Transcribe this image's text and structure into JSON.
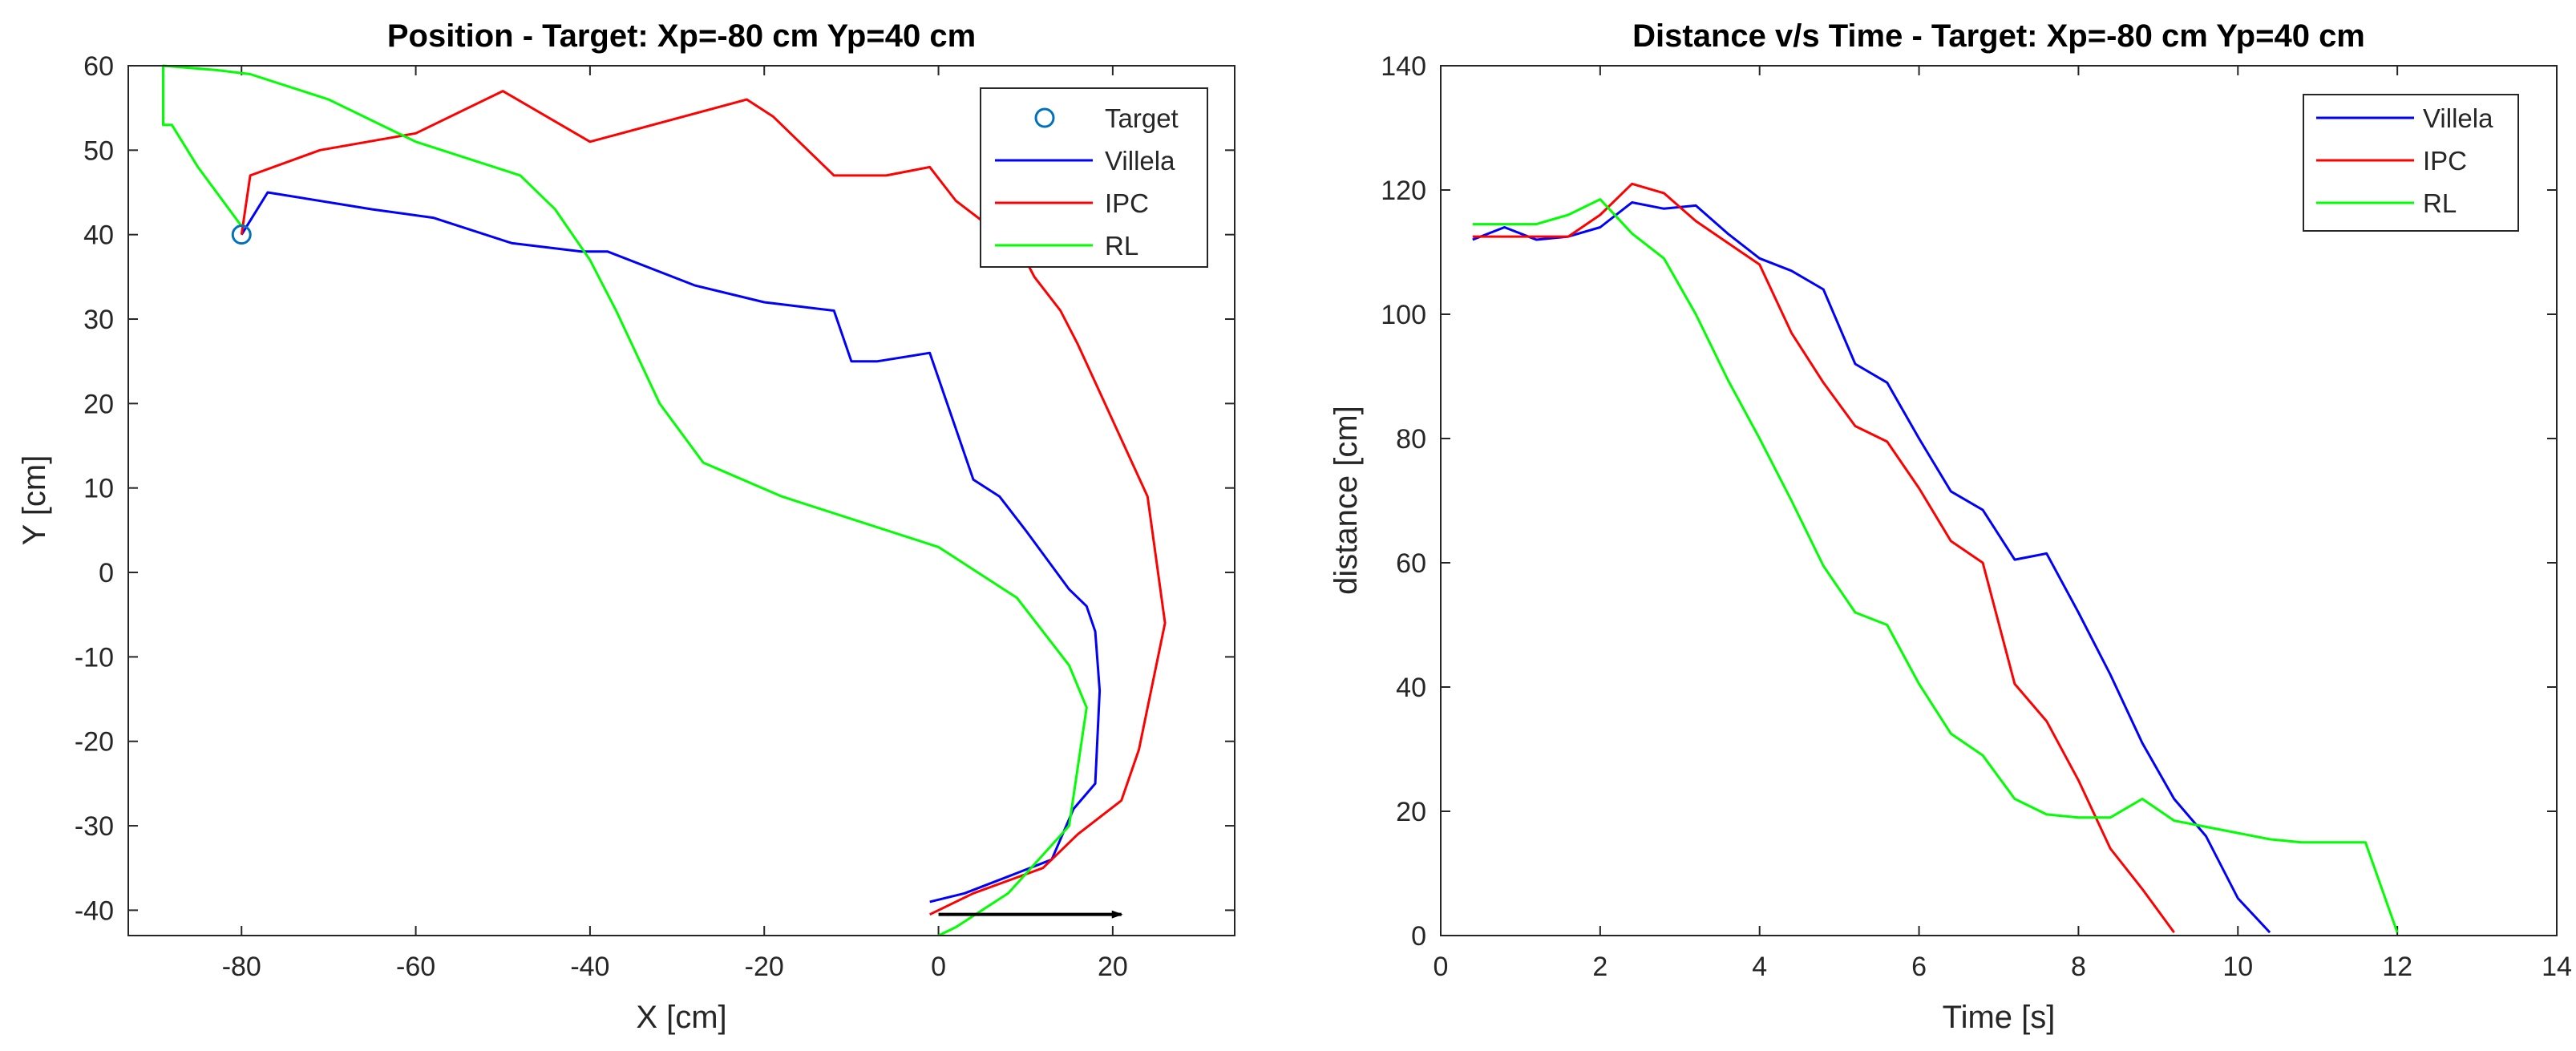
{
  "chart_data": [
    {
      "type": "line",
      "title": "Position - Target: Xp=-80 cm Yp=40 cm",
      "xlabel": "X [cm]",
      "ylabel": "Y [cm]",
      "xlim": [
        -93,
        34
      ],
      "ylim": [
        -43,
        60
      ],
      "xticks": [
        -80,
        -60,
        -40,
        -20,
        0,
        20
      ],
      "yticks": [
        -40,
        -30,
        -20,
        -10,
        0,
        10,
        20,
        30,
        40,
        50,
        60
      ],
      "grid": false,
      "legend_position": "top-right",
      "legend": [
        "Target",
        "Villela",
        "IPC",
        "RL"
      ],
      "target": {
        "name": "Target",
        "x": -80,
        "y": 40,
        "marker": "circle",
        "color": "#0072BD"
      },
      "arrow": {
        "from": [
          0,
          -40.5
        ],
        "to": [
          21,
          -40.5
        ],
        "color": "#000000"
      },
      "series": [
        {
          "name": "Villela",
          "color": "#0000FF",
          "points": [
            [
              -1,
              -39
            ],
            [
              3,
              -38
            ],
            [
              8,
              -36
            ],
            [
              13,
              -34
            ],
            [
              15.5,
              -28
            ],
            [
              18,
              -25
            ],
            [
              18.5,
              -14
            ],
            [
              18,
              -7
            ],
            [
              17,
              -4
            ],
            [
              15,
              -2
            ],
            [
              10,
              5
            ],
            [
              7,
              9
            ],
            [
              4,
              11
            ],
            [
              2,
              17
            ],
            [
              -1,
              26
            ],
            [
              -7,
              25
            ],
            [
              -10,
              25
            ],
            [
              -12,
              31
            ],
            [
              -20,
              32
            ],
            [
              -28,
              34
            ],
            [
              -38,
              38
            ],
            [
              -41,
              38
            ],
            [
              -49,
              39
            ],
            [
              -58,
              42
            ],
            [
              -65,
              43
            ],
            [
              -77,
              45
            ],
            [
              -80,
              40
            ]
          ]
        },
        {
          "name": "IPC",
          "color": "#FF0000",
          "points": [
            [
              -1,
              -40.5
            ],
            [
              4,
              -38
            ],
            [
              12,
              -35
            ],
            [
              16,
              -31
            ],
            [
              21,
              -27
            ],
            [
              23,
              -21
            ],
            [
              26,
              -6
            ],
            [
              24,
              9
            ],
            [
              16,
              27
            ],
            [
              14,
              31
            ],
            [
              11,
              35
            ],
            [
              10,
              37
            ],
            [
              9,
              38.5
            ],
            [
              2,
              44
            ],
            [
              -1,
              48
            ],
            [
              -6,
              47
            ],
            [
              -12,
              47
            ],
            [
              -19,
              54
            ],
            [
              -22,
              56
            ],
            [
              -40,
              51
            ],
            [
              -50,
              57
            ],
            [
              -60,
              52
            ],
            [
              -71,
              50
            ],
            [
              -79,
              47
            ],
            [
              -80,
              40
            ]
          ]
        },
        {
          "name": "RL",
          "color": "#00FF00",
          "points": [
            [
              0,
              -43
            ],
            [
              2,
              -42
            ],
            [
              8,
              -38
            ],
            [
              15,
              -30
            ],
            [
              17,
              -16
            ],
            [
              15,
              -11
            ],
            [
              9,
              -3
            ],
            [
              0,
              3
            ],
            [
              -18,
              9
            ],
            [
              -27,
              13
            ],
            [
              -32,
              20
            ],
            [
              -37,
              31
            ],
            [
              -40,
              37
            ],
            [
              -44,
              43
            ],
            [
              -48,
              47
            ],
            [
              -60,
              51
            ],
            [
              -70,
              56
            ],
            [
              -79,
              59
            ],
            [
              -83,
              59.5
            ],
            [
              -89,
              60
            ],
            [
              -89,
              53
            ],
            [
              -88,
              53
            ],
            [
              -85,
              48
            ],
            [
              -80,
              41
            ]
          ]
        }
      ]
    },
    {
      "type": "line",
      "title": "Distance v/s Time - Target: Xp=-80 cm Yp=40 cm",
      "xlabel": "Time [s]",
      "ylabel": "distance [cm]",
      "xlim": [
        0,
        14
      ],
      "ylim": [
        0,
        140
      ],
      "xticks": [
        0,
        2,
        4,
        6,
        8,
        10,
        12,
        14
      ],
      "yticks": [
        0,
        20,
        40,
        60,
        80,
        100,
        120,
        140
      ],
      "grid": false,
      "legend_position": "top-right",
      "legend": [
        "Villela",
        "IPC",
        "RL"
      ],
      "series": [
        {
          "name": "Villela",
          "color": "#0000FF",
          "points": [
            [
              0.4,
              112
            ],
            [
              0.8,
              114
            ],
            [
              1.2,
              112
            ],
            [
              1.6,
              112.5
            ],
            [
              2,
              114
            ],
            [
              2.4,
              118
            ],
            [
              2.8,
              117
            ],
            [
              3.2,
              117.5
            ],
            [
              3.6,
              113
            ],
            [
              4,
              109
            ],
            [
              4.4,
              107
            ],
            [
              4.8,
              104
            ],
            [
              5.2,
              92
            ],
            [
              5.6,
              89
            ],
            [
              6,
              80
            ],
            [
              6.4,
              71.5
            ],
            [
              6.8,
              68.5
            ],
            [
              7.2,
              60.5
            ],
            [
              7.6,
              61.5
            ],
            [
              8,
              52
            ],
            [
              8.4,
              42
            ],
            [
              8.8,
              31
            ],
            [
              9.2,
              22
            ],
            [
              9.6,
              16
            ],
            [
              10,
              6
            ],
            [
              10.4,
              0.5
            ]
          ]
        },
        {
          "name": "IPC",
          "color": "#FF0000",
          "points": [
            [
              0.4,
              112.5
            ],
            [
              0.8,
              112.5
            ],
            [
              1.2,
              112.5
            ],
            [
              1.6,
              112.5
            ],
            [
              2,
              116
            ],
            [
              2.4,
              121
            ],
            [
              2.8,
              119.5
            ],
            [
              3.2,
              115
            ],
            [
              3.6,
              111.5
            ],
            [
              4,
              108
            ],
            [
              4.4,
              97
            ],
            [
              4.8,
              89
            ],
            [
              5.2,
              82
            ],
            [
              5.6,
              79.5
            ],
            [
              6,
              72
            ],
            [
              6.4,
              63.5
            ],
            [
              6.8,
              60
            ],
            [
              7.2,
              40.5
            ],
            [
              7.6,
              34.5
            ],
            [
              8,
              25
            ],
            [
              8.4,
              14
            ],
            [
              8.8,
              7.5
            ],
            [
              9.2,
              0.5
            ]
          ]
        },
        {
          "name": "RL",
          "color": "#00FF00",
          "points": [
            [
              0.4,
              114.5
            ],
            [
              0.8,
              114.5
            ],
            [
              1.2,
              114.5
            ],
            [
              1.6,
              116
            ],
            [
              2,
              118.5
            ],
            [
              2.4,
              113
            ],
            [
              2.8,
              109
            ],
            [
              3.2,
              100
            ],
            [
              3.6,
              89.5
            ],
            [
              4,
              80
            ],
            [
              4.4,
              70
            ],
            [
              4.8,
              59.5
            ],
            [
              5.2,
              52
            ],
            [
              5.6,
              50
            ],
            [
              6,
              40.5
            ],
            [
              6.4,
              32.5
            ],
            [
              6.8,
              29
            ],
            [
              7.2,
              22
            ],
            [
              7.6,
              19.5
            ],
            [
              8,
              19
            ],
            [
              8.4,
              19
            ],
            [
              8.8,
              22
            ],
            [
              9.2,
              18.5
            ],
            [
              9.6,
              17.5
            ],
            [
              10,
              16.5
            ],
            [
              10.4,
              15.5
            ],
            [
              10.8,
              15
            ],
            [
              11.2,
              15
            ],
            [
              11.6,
              15
            ],
            [
              12,
              0.5
            ]
          ]
        }
      ]
    }
  ]
}
